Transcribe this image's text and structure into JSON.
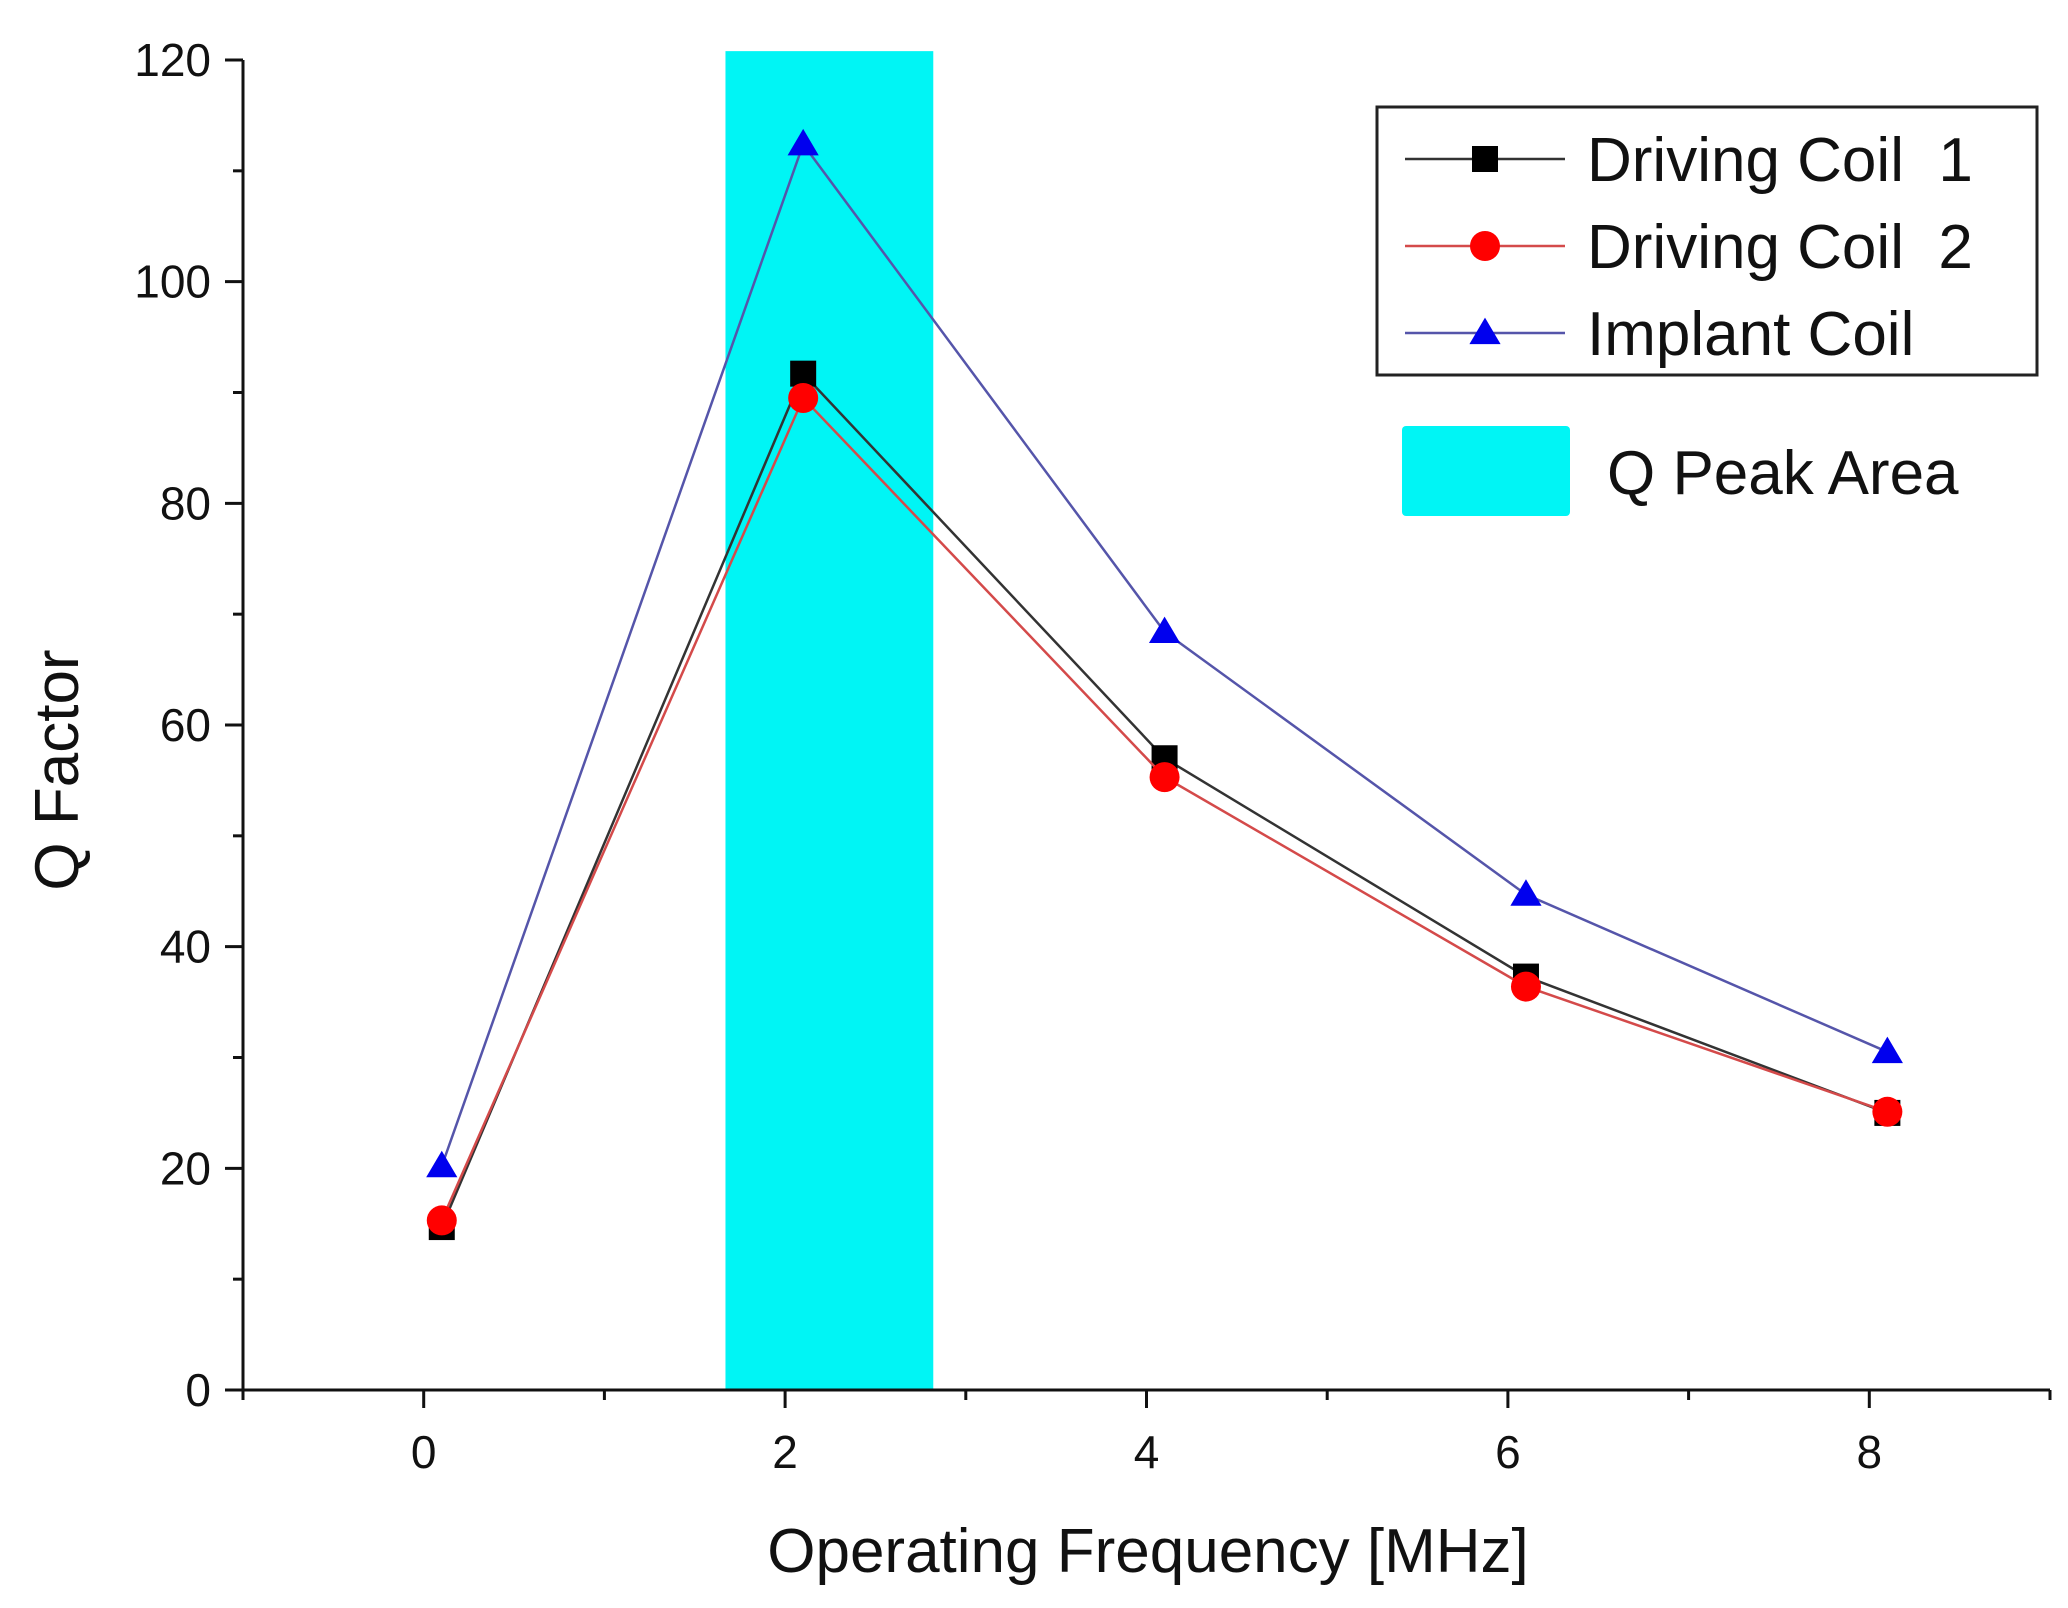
{
  "chart_data": {
    "type": "line",
    "title": "",
    "xlabel": "Operating Frequency [MHz]",
    "ylabel": "Q Factor",
    "xlim": [
      -1,
      9
    ],
    "ylim": [
      0,
      120
    ],
    "x_ticks": [
      0,
      2,
      4,
      6,
      8
    ],
    "x_tick_labels": [
      "0",
      "2",
      "4",
      "6",
      "8"
    ],
    "y_ticks": [
      0,
      20,
      40,
      60,
      80,
      100,
      120
    ],
    "y_tick_labels": [
      "0",
      "20",
      "40",
      "60",
      "80",
      "100",
      "120"
    ],
    "grid": false,
    "legend_position": "top-right",
    "x": [
      0.1,
      2.1,
      4.1,
      6.1,
      8.1
    ],
    "series": [
      {
        "name": "Driving Coil  1",
        "values": [
          14.7,
          91.7,
          57.0,
          37.3,
          25.0
        ],
        "marker": "square",
        "marker_color": "#000000",
        "line_color": "#333333"
      },
      {
        "name": "Driving Coil  2",
        "values": [
          15.3,
          89.5,
          55.3,
          36.4,
          25.1
        ],
        "marker": "circle",
        "marker_color": "#ff0000",
        "line_color": "#d44a4a"
      },
      {
        "name": "Implant Coil",
        "values": [
          20.2,
          112.4,
          68.4,
          44.7,
          30.5
        ],
        "marker": "triangle",
        "marker_color": "#0000ee",
        "line_color": "#5555aa"
      }
    ],
    "annotations": [
      {
        "label": "Q Peak Area",
        "type": "shaded-band",
        "x_range": [
          1.67,
          2.82
        ],
        "y_range": [
          0,
          120.8
        ],
        "color": "#00f5f5"
      }
    ]
  }
}
